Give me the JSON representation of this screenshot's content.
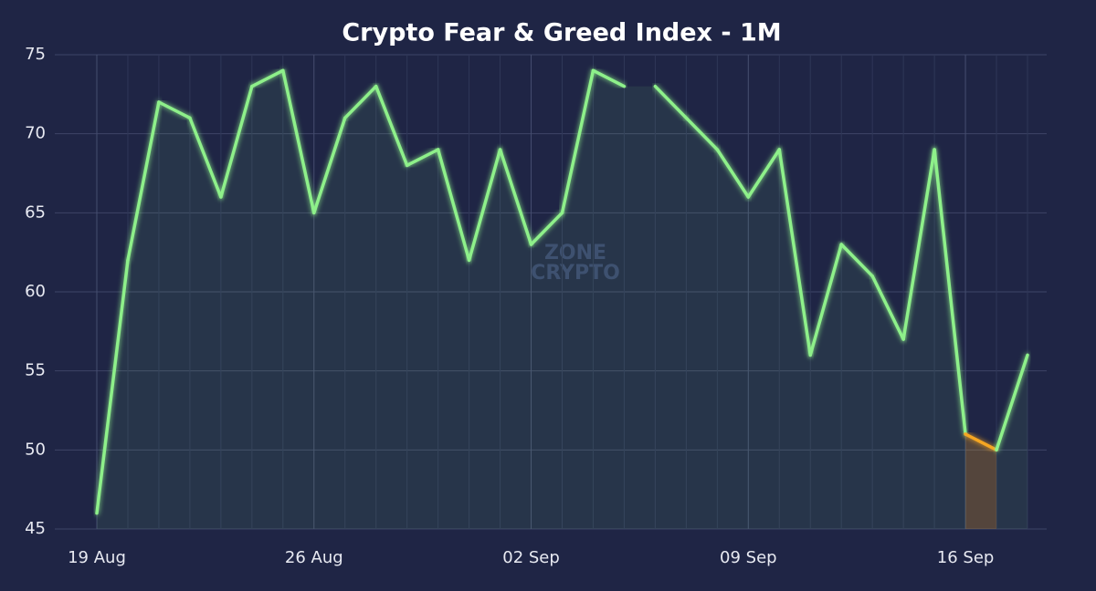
{
  "chart_data": {
    "type": "line",
    "title": "Crypto Fear & Greed Index - 1M",
    "watermark": [
      "ZONE",
      "CRYPTO"
    ],
    "categories": [
      "19 Aug",
      null,
      null,
      null,
      null,
      null,
      null,
      "26 Aug",
      null,
      null,
      null,
      null,
      null,
      null,
      "02 Sep",
      null,
      null,
      null,
      null,
      null,
      null,
      "09 Sep",
      null,
      null,
      null,
      null,
      null,
      null,
      "16 Sep",
      null,
      null
    ],
    "values": [
      46,
      62,
      72,
      71,
      66,
      73,
      74,
      65,
      71,
      73,
      68,
      69,
      62,
      69,
      63,
      65,
      74,
      73,
      73,
      71,
      69,
      66,
      69,
      56,
      63,
      61,
      57,
      69,
      51,
      50,
      56
    ],
    "segment_colors": [
      "#8ef08a",
      "#8ef08a",
      "#8ef08a",
      "#8ef08a",
      "#8ef08a",
      "#8ef08a",
      "#8ef08a",
      "#8ef08a",
      "#8ef08a",
      "#8ef08a",
      "#8ef08a",
      "#8ef08a",
      "#8ef08a",
      "#8ef08a",
      "#8ef08a",
      "#8ef08a",
      "#8ef08a",
      "#8ef08a",
      "#8ef08a",
      "#8ef08a",
      "#8ef08a",
      "#8ef08a",
      "#8ef08a",
      "#8ef08a",
      "#8ef08a",
      "#8ef08a",
      "#8ef08a",
      "#8ef08a",
      "#f5a623",
      "#8ef08a"
    ],
    "ylim": [
      45,
      75
    ],
    "yticks": [
      45,
      50,
      55,
      60,
      65,
      70,
      75
    ],
    "grid": true
  }
}
